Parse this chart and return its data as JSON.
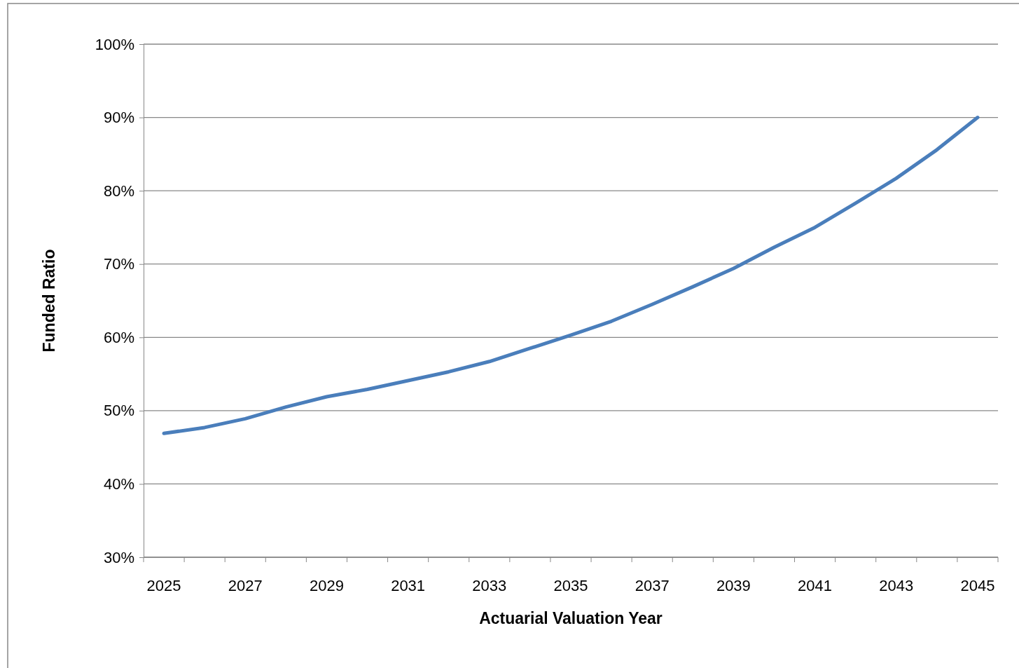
{
  "chart_data": {
    "type": "line",
    "xlabel": "Actuarial Valuation Year",
    "ylabel": "Funded Ratio",
    "categories": [
      "2025",
      null,
      "2027",
      null,
      "2029",
      null,
      "2031",
      null,
      "2033",
      null,
      "2035",
      null,
      "2037",
      null,
      "2039",
      null,
      "2041",
      null,
      "2043",
      null,
      "2045"
    ],
    "series": [
      {
        "color": "#4a7ebb",
        "values": [
          46.9,
          47.7,
          48.9,
          50.5,
          51.9,
          52.9,
          54.1,
          55.3,
          56.7,
          58.5,
          60.3,
          62.2,
          64.5,
          66.9,
          69.4,
          72.3,
          75.0,
          78.3,
          81.7,
          85.6,
          90.0
        ]
      }
    ],
    "ylim": [
      30,
      100
    ],
    "yticks": [
      {
        "value": 30,
        "label": "30%"
      },
      {
        "value": 40,
        "label": "40%"
      },
      {
        "value": 50,
        "label": "50%"
      },
      {
        "value": 60,
        "label": "60%"
      },
      {
        "value": 70,
        "label": "70%"
      },
      {
        "value": 80,
        "label": "80%"
      },
      {
        "value": 90,
        "label": "90%"
      },
      {
        "value": 100,
        "label": "100%"
      }
    ],
    "grid": "y",
    "marker": "none",
    "line_style": "solid"
  }
}
